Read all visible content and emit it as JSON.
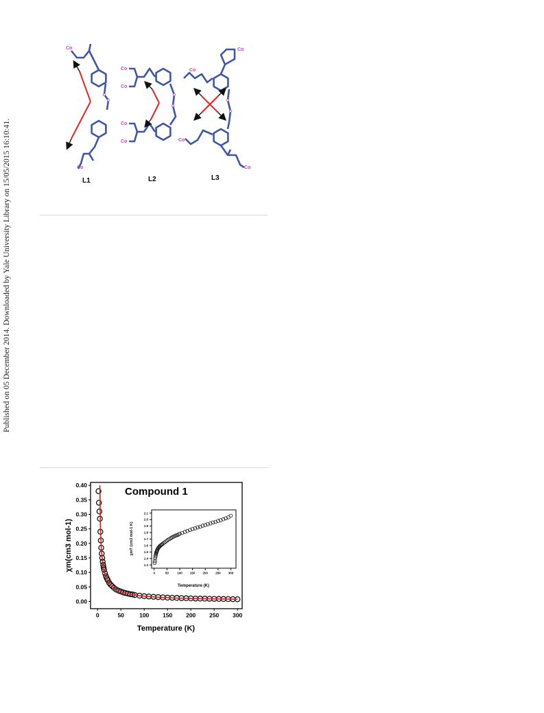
{
  "side_note": "Published on 05 December 2014. Downloaded by Yale University Library on 15/05/2015 16:10:41.",
  "scheme": {
    "metal_label": "Co",
    "ligand_labels": [
      "L1",
      "L2",
      "L3"
    ],
    "colors": {
      "bond": "#3d55a6",
      "metal": "#d040c8",
      "arrow_red": "#e52620",
      "arrow_black": "#111111"
    }
  },
  "chart_data": [
    {
      "type": "scatter",
      "title": "Compound 1",
      "xlabel": "Temperature (K)",
      "ylabel": "χm(cm3 mol-1)",
      "xlim": [
        -15,
        310
      ],
      "ylim": [
        -0.025,
        0.41
      ],
      "xticks": [
        "0",
        "50",
        "100",
        "150",
        "200",
        "250",
        "300"
      ],
      "yticks": [
        "0.00",
        "0.05",
        "0.10",
        "0.15",
        "0.20",
        "0.25",
        "0.30",
        "0.35",
        "0.40"
      ],
      "series": [
        {
          "marker": "open-circle",
          "color": "#111111",
          "x": [
            2,
            3,
            4,
            5,
            6,
            7,
            8,
            9,
            10,
            11,
            12,
            13,
            14,
            16,
            18,
            20,
            22,
            25,
            28,
            31,
            35,
            40,
            45,
            50,
            55,
            60,
            65,
            70,
            75,
            80,
            90,
            100,
            110,
            120,
            130,
            140,
            150,
            160,
            170,
            180,
            190,
            200,
            210,
            220,
            230,
            240,
            250,
            260,
            270,
            280,
            290,
            300
          ],
          "y": [
            0.38,
            0.34,
            0.31,
            0.285,
            0.24,
            0.21,
            0.185,
            0.165,
            0.15,
            0.137,
            0.126,
            0.117,
            0.109,
            0.097,
            0.087,
            0.079,
            0.073,
            0.064,
            0.058,
            0.053,
            0.047,
            0.041,
            0.037,
            0.034,
            0.031,
            0.029,
            0.027,
            0.025,
            0.024,
            0.022,
            0.02,
            0.018,
            0.017,
            0.016,
            0.015,
            0.014,
            0.013,
            0.0125,
            0.012,
            0.0115,
            0.011,
            0.0105,
            0.01,
            0.0097,
            0.0094,
            0.0091,
            0.0088,
            0.0085,
            0.0083,
            0.0081,
            0.0079,
            0.0077
          ]
        },
        {
          "marker": "line",
          "color": "#e01b1b",
          "x": [
            5,
            6,
            7,
            8,
            9,
            10,
            12,
            14,
            16,
            18,
            20,
            25,
            30,
            40,
            50,
            60,
            80,
            100,
            130,
            160,
            200,
            250,
            300
          ],
          "y": [
            0.4,
            0.26,
            0.215,
            0.185,
            0.163,
            0.148,
            0.125,
            0.108,
            0.096,
            0.086,
            0.078,
            0.063,
            0.054,
            0.041,
            0.034,
            0.029,
            0.022,
            0.018,
            0.0145,
            0.012,
            0.0103,
            0.0088,
            0.0077
          ]
        }
      ]
    },
    {
      "type": "scatter",
      "title": "",
      "xlabel": "Temperature (K)",
      "ylabel": "χmT (cm3 mol-1 K)",
      "xlim": [
        -10,
        320
      ],
      "ylim": [
        1.25,
        2.15
      ],
      "xticks": [
        "0",
        "50",
        "100",
        "150",
        "200",
        "250",
        "300"
      ],
      "yticks": [
        "1.3",
        "1.4",
        "1.5",
        "1.6",
        "1.7",
        "1.8",
        "1.9",
        "2.0",
        "2.1"
      ],
      "series": [
        {
          "marker": "open-circle",
          "color": "#111111",
          "x": [
            2,
            3,
            4,
            5,
            6,
            7,
            8,
            9,
            10,
            11,
            12,
            14,
            16,
            18,
            20,
            22,
            25,
            28,
            31,
            35,
            40,
            45,
            50,
            55,
            60,
            65,
            70,
            75,
            80,
            85,
            90,
            95,
            100,
            110,
            120,
            130,
            140,
            150,
            160,
            170,
            180,
            190,
            200,
            210,
            220,
            230,
            240,
            250,
            260,
            270,
            280,
            290,
            300
          ],
          "y": [
            1.33,
            1.36,
            1.4,
            1.43,
            1.45,
            1.47,
            1.485,
            1.5,
            1.51,
            1.52,
            1.53,
            1.545,
            1.56,
            1.57,
            1.58,
            1.59,
            1.6,
            1.61,
            1.62,
            1.63,
            1.645,
            1.66,
            1.675,
            1.69,
            1.7,
            1.715,
            1.725,
            1.735,
            1.745,
            1.755,
            1.76,
            1.77,
            1.78,
            1.795,
            1.81,
            1.825,
            1.84,
            1.855,
            1.865,
            1.88,
            1.89,
            1.905,
            1.915,
            1.93,
            1.94,
            1.955,
            1.965,
            1.98,
            1.99,
            2.005,
            2.02,
            2.035,
            2.06
          ]
        }
      ]
    }
  ]
}
